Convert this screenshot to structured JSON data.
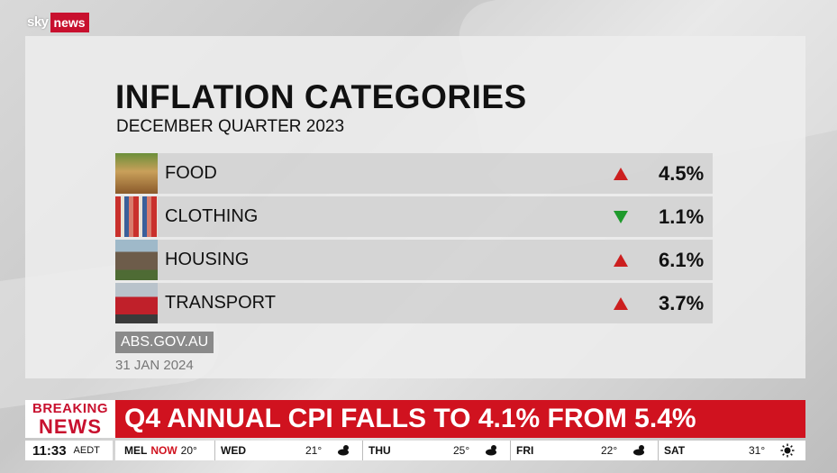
{
  "logo": {
    "sky": "sky",
    "news": "news"
  },
  "panel": {
    "title": "INFLATION CATEGORIES",
    "subtitle": "DECEMBER QUARTER 2023",
    "rows": [
      {
        "label": "FOOD",
        "value": "4.5%",
        "direction": "up",
        "icon": "food-photo"
      },
      {
        "label": "CLOTHING",
        "value": "1.1%",
        "direction": "down",
        "icon": "clothing-photo"
      },
      {
        "label": "HOUSING",
        "value": "6.1%",
        "direction": "up",
        "icon": "housing-photo"
      },
      {
        "label": "TRANSPORT",
        "value": "3.7%",
        "direction": "up",
        "icon": "transport-photo"
      }
    ],
    "source": "ABS.GOV.AU",
    "date": "31 JAN 2024"
  },
  "breaking": {
    "line1": "BREAKING",
    "line2": "NEWS",
    "headline": "Q4 ANNUAL CPI FALLS TO 4.1% FROM 5.4%"
  },
  "ticker": {
    "time": "11:33",
    "timezone": "AEDT",
    "city": "MEL",
    "now_label": "NOW",
    "now_temp": "20°",
    "days": [
      {
        "name": "WED",
        "temp": "21°",
        "icon": "cloudy-sun-icon"
      },
      {
        "name": "THU",
        "temp": "25°",
        "icon": "cloudy-sun-icon"
      },
      {
        "name": "FRI",
        "temp": "22°",
        "icon": "cloudy-sun-icon"
      },
      {
        "name": "SAT",
        "temp": "31°",
        "icon": "sun-icon"
      }
    ]
  },
  "colors": {
    "brand_red": "#d0121f",
    "up_arrow": "#cc1f1f",
    "down_arrow": "#1f9a2c"
  }
}
